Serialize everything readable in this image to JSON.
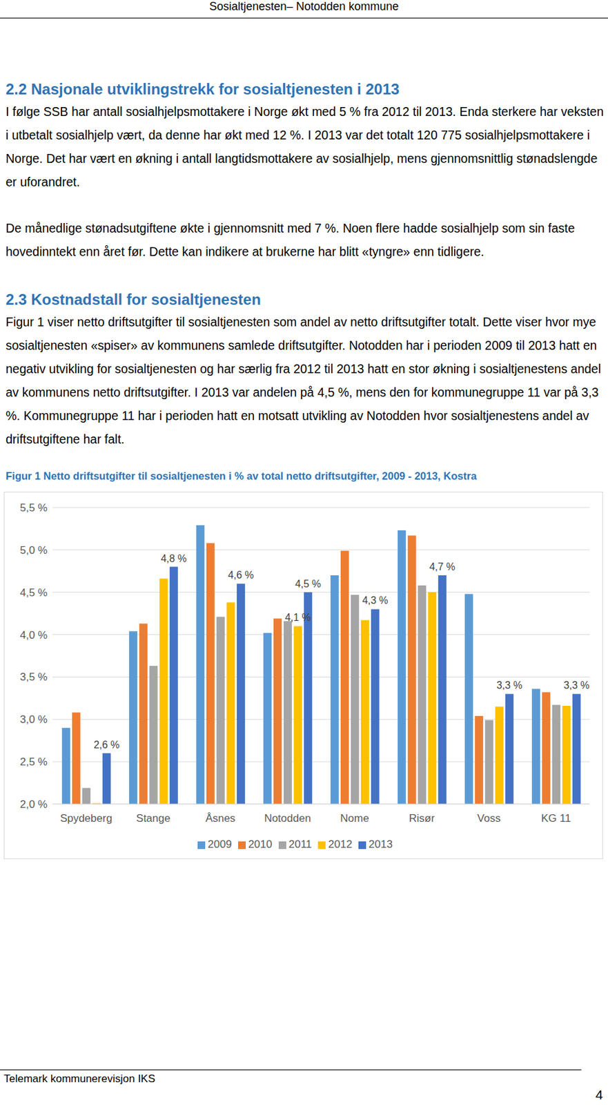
{
  "header": "Sosialtjenesten– Notodden kommune",
  "sections": [
    {
      "heading": "2.2 Nasjonale utviklingstrekk for sosialtjenesten i 2013",
      "paragraphs": [
        "I følge SSB har antall sosialhjelpsmottakere i Norge økt med 5 % fra 2012 til 2013. Enda sterkere har veksten i utbetalt sosialhjelp vært, da denne har økt med 12 %. I 2013 var det totalt 120 775 sosialhjelpsmottakere i Norge. Det har vært en økning i antall langtidsmottakere av sosialhjelp, mens gjennomsnittlig stønadslengde er uforandret.",
        "De månedlige stønadsutgiftene økte i gjennomsnitt med 7 %. Noen flere hadde sosialhjelp som sin faste hovedinntekt enn året før. Dette kan indikere at brukerne har blitt «tyngre» enn tidligere."
      ]
    },
    {
      "heading": "2.3 Kostnadstall for sosialtjenesten",
      "paragraphs": [
        "Figur 1 viser netto driftsutgifter til sosialtjenesten som andel av netto driftsutgifter totalt. Dette viser hvor mye sosialtjenesten «spiser» av kommunens samlede driftsutgifter. Notodden har i perioden 2009 til 2013 hatt en negativ utvikling for sosialtjenesten og har særlig fra 2012 til 2013 hatt en stor økning i sosialtjenestens andel av kommunens netto driftsutgifter. I 2013 var andelen på 4,5 %, mens den for kommunegruppe 11 var på 3,3 %. Kommunegruppe 11 har i perioden hatt en motsatt utvikling av Notodden hvor sosialtjenestens andel av driftsutgiftene har falt."
      ]
    }
  ],
  "chart_data": {
    "type": "bar",
    "title": "Figur 1 Netto driftsutgifter til sosialtjenesten i % av total netto driftsutgifter, 2009 - 2013, Kostra",
    "categories": [
      "Spydeberg",
      "Stange",
      "Åsnes",
      "Notodden",
      "Nome",
      "Risør",
      "Voss",
      "KG 11"
    ],
    "series": [
      {
        "name": "2009",
        "color": "#5B9BD5",
        "values": [
          2.9,
          4.04,
          5.29,
          4.02,
          4.7,
          5.23,
          4.48,
          3.36
        ]
      },
      {
        "name": "2010",
        "color": "#ED7D31",
        "values": [
          3.08,
          4.13,
          5.08,
          4.19,
          4.99,
          5.17,
          3.04,
          3.32
        ]
      },
      {
        "name": "2011",
        "color": "#A5A5A5",
        "values": [
          2.19,
          3.63,
          4.21,
          4.16,
          4.47,
          4.58,
          2.99,
          3.17
        ]
      },
      {
        "name": "2012",
        "color": "#FFC000",
        "values": [
          2.01,
          4.66,
          4.38,
          4.1,
          4.17,
          4.5,
          3.15,
          3.16
        ],
        "value_labels": [
          null,
          null,
          null,
          "4,1 %",
          null,
          null,
          null,
          null
        ]
      },
      {
        "name": "2013",
        "color": "#4472C4",
        "values": [
          2.6,
          4.8,
          4.6,
          4.5,
          4.3,
          4.7,
          3.3,
          3.3
        ],
        "value_labels": [
          "2,6 %",
          "4,8 %",
          "4,6 %",
          "4,5 %",
          "4,3 %",
          "4,7 %",
          "3,3 %",
          "3,3 %"
        ]
      }
    ],
    "ylim": [
      2.0,
      5.5
    ],
    "yticks": [
      {
        "value": 2.0,
        "label": "2,0 %"
      },
      {
        "value": 2.5,
        "label": "2,5 %"
      },
      {
        "value": 3.0,
        "label": "3,0 %"
      },
      {
        "value": 3.5,
        "label": "3,5 %"
      },
      {
        "value": 4.0,
        "label": "4,0 %"
      },
      {
        "value": 4.5,
        "label": "4,5 %"
      },
      {
        "value": 5.0,
        "label": "5,0 %"
      },
      {
        "value": 5.5,
        "label": "5,5 %"
      }
    ],
    "grid": true,
    "legend": "bottom"
  },
  "footer": "Telemark kommunerevisjon IKS",
  "page_number": 4
}
